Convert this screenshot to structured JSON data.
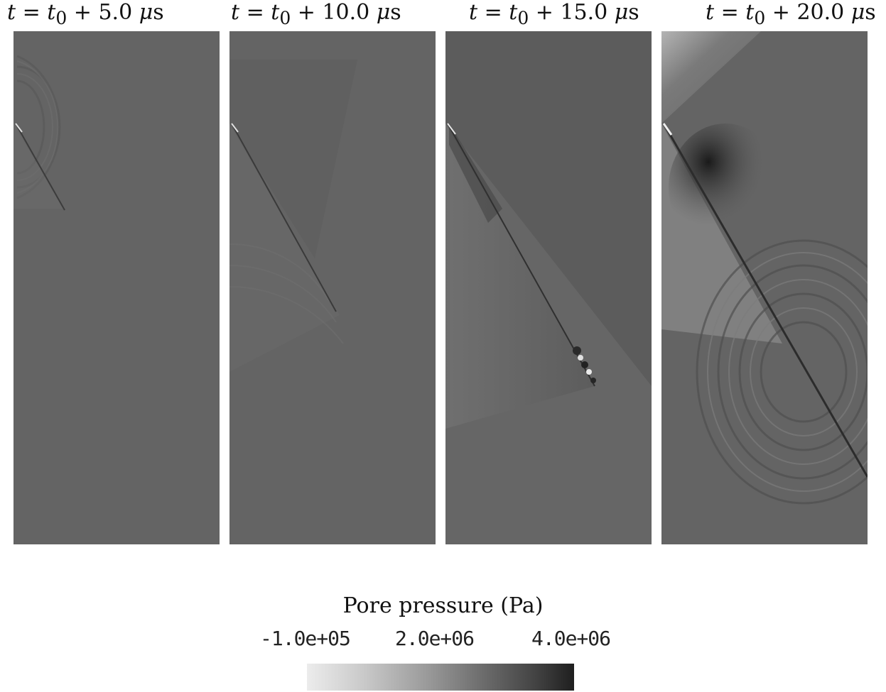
{
  "panels": [
    {
      "prefix": "t = t",
      "sub": "0",
      "suffix": " + 5.0 ",
      "unit_mu": "μ",
      "unit_s": "s"
    },
    {
      "prefix": "t = t",
      "sub": "0",
      "suffix": " + 10.0 ",
      "unit_mu": "μ",
      "unit_s": "s"
    },
    {
      "prefix": "t = t",
      "sub": "0",
      "suffix": " + 15.0 ",
      "unit_mu": "μ",
      "unit_s": "s"
    },
    {
      "prefix": "t = t",
      "sub": "0",
      "suffix": " + 20.0 ",
      "unit_mu": "μ",
      "unit_s": "s"
    }
  ],
  "colorbar": {
    "title": "Pore pressure (Pa)",
    "ticks": [
      "-1.0e+05",
      "2.0e+06",
      "4.0e+06"
    ],
    "colors": {
      "low": "#ececec",
      "mid": "#9a9a9a",
      "high": "#1f1f1f"
    }
  },
  "background_gray": "#646464"
}
